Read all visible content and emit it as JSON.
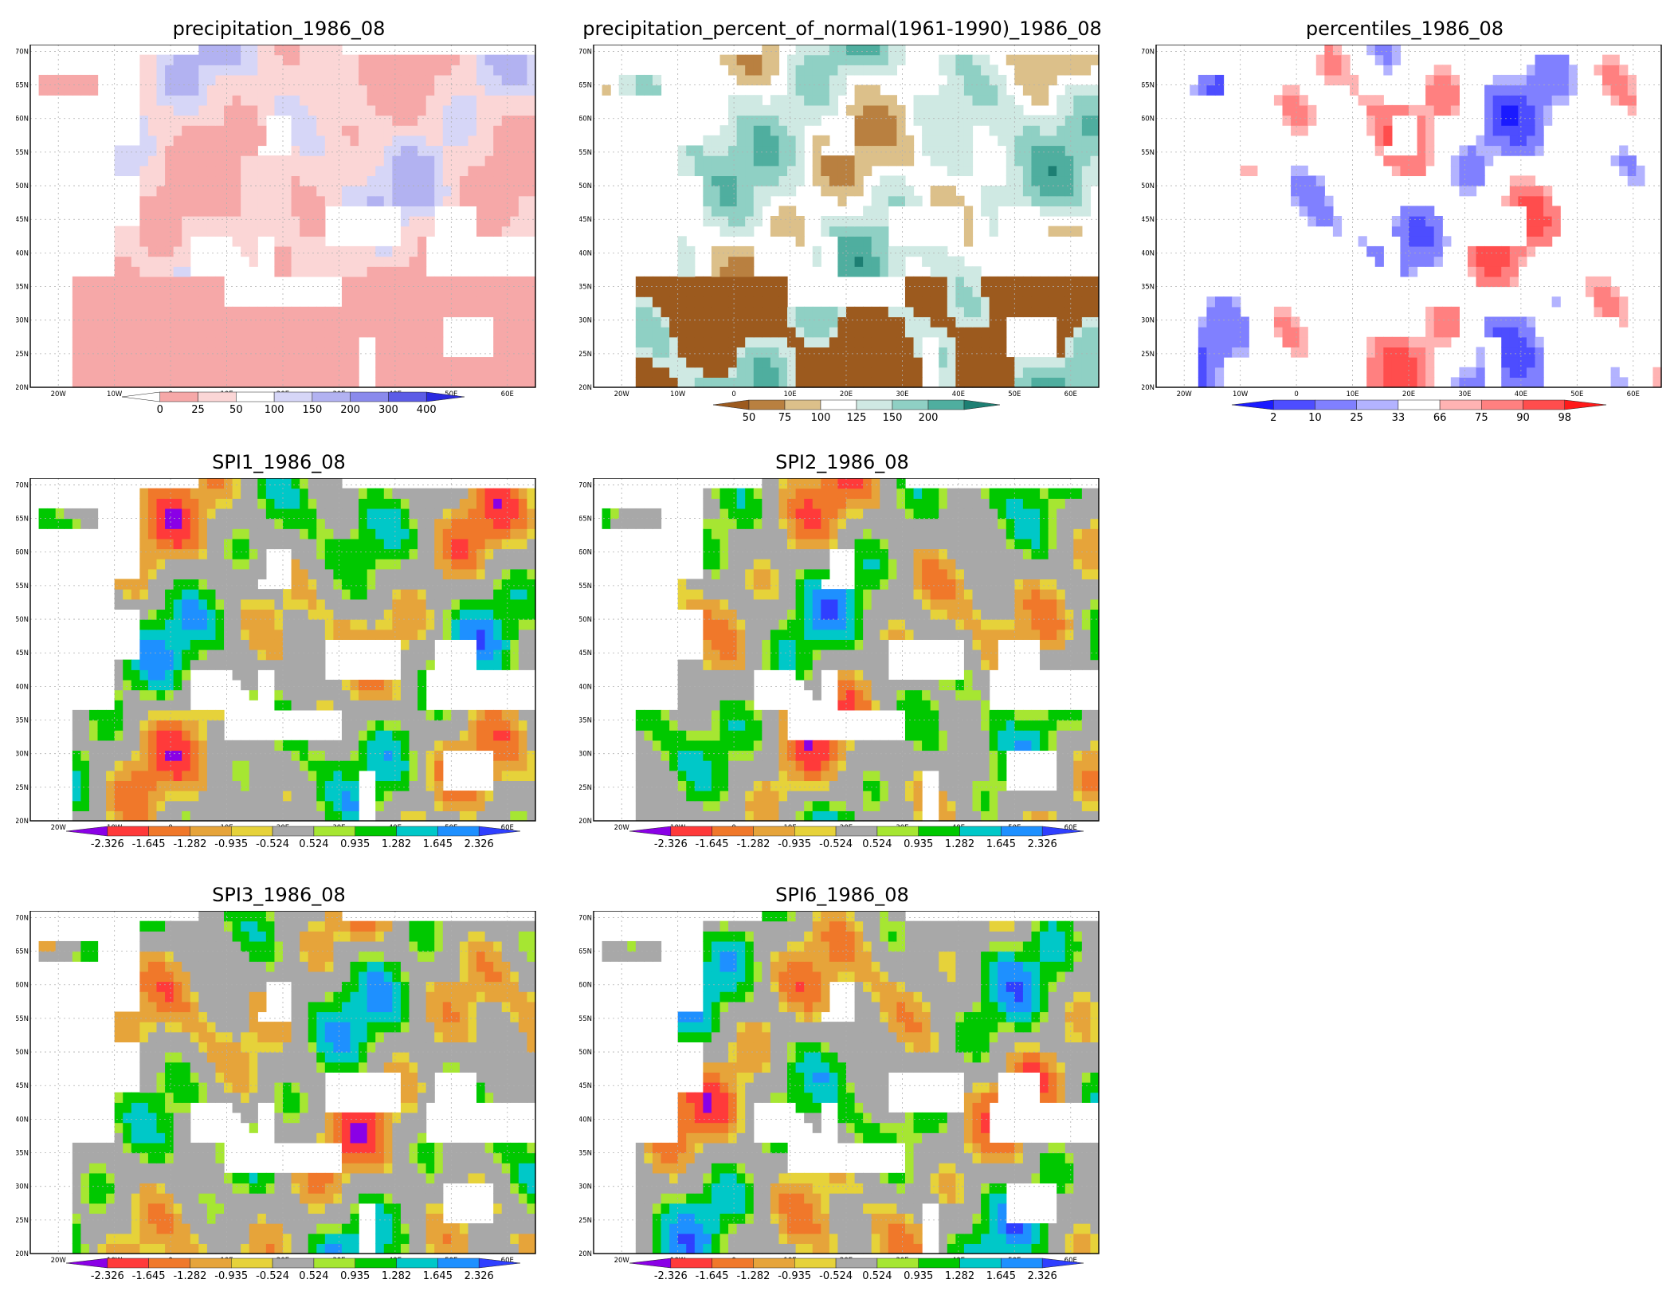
{
  "lat_ticks": [
    "70N",
    "65N",
    "60N",
    "55N",
    "50N",
    "45N",
    "40N",
    "35N",
    "30N",
    "25N",
    "20N"
  ],
  "lon_ticks": [
    "20W",
    "10W",
    "0",
    "10E",
    "20E",
    "30E",
    "40E",
    "50E",
    "60E"
  ],
  "colors": {
    "precip": [
      "#ffffff",
      "#f6a8a8",
      "#fbd6d6",
      "#ffffff",
      "#d6d6f7",
      "#b2b2f1",
      "#8a8aec",
      "#5c5ce6",
      "#2a2ae0"
    ],
    "pct": [
      "#9c5a1e",
      "#b98040",
      "#dcc08a",
      "#ffffff",
      "#cfe9e3",
      "#8fd0c4",
      "#4fae9f",
      "#1d7f73"
    ],
    "perc": [
      "#1a1aff",
      "#4d4dff",
      "#8080ff",
      "#b3b3ff",
      "#ffffff",
      "#ffb3b3",
      "#ff8080",
      "#ff4d4d",
      "#ff1a1a"
    ],
    "spi": [
      "#8a00e6",
      "#ff3a3a",
      "#f0782a",
      "#e6a43a",
      "#e6d23a",
      "#a8a8a8",
      "#a6e632",
      "#00c800",
      "#00c8c8",
      "#1e90ff",
      "#2f3fff"
    ]
  },
  "panels": [
    {
      "name": "precipitation",
      "title": "precipitation_1986_08",
      "palette": "precip",
      "legend_labels": [
        "0",
        "25",
        "50",
        "100",
        "150",
        "200",
        "300",
        "400"
      ]
    },
    {
      "name": "precipitation-percent",
      "title": "precipitation_percent_of_normal(1961-1990)_1986_08",
      "palette": "pct",
      "legend_labels": [
        "50",
        "75",
        "100",
        "125",
        "150",
        "200"
      ]
    },
    {
      "name": "percentiles",
      "title": "percentiles_1986_08",
      "palette": "perc",
      "legend_labels": [
        "2",
        "10",
        "25",
        "33",
        "66",
        "75",
        "90",
        "98"
      ]
    },
    {
      "name": "spi1",
      "title": "SPI1_1986_08",
      "palette": "spi",
      "legend_labels": [
        "-2.326",
        "-1.645",
        "-1.282",
        "-0.935",
        "-0.524",
        "0.524",
        "0.935",
        "1.282",
        "1.645",
        "2.326"
      ]
    },
    {
      "name": "spi2",
      "title": "SPI2_1986_08",
      "palette": "spi",
      "legend_labels": [
        "-2.326",
        "-1.645",
        "-1.282",
        "-0.935",
        "-0.524",
        "0.524",
        "0.935",
        "1.282",
        "1.645",
        "2.326"
      ]
    },
    {
      "name": "spi3",
      "title": "SPI3_1986_08",
      "palette": "spi",
      "legend_labels": [
        "-2.326",
        "-1.645",
        "-1.282",
        "-0.935",
        "-0.524",
        "0.524",
        "0.935",
        "1.282",
        "1.645",
        "2.326"
      ]
    },
    {
      "name": "spi6",
      "title": "SPI6_1986_08",
      "palette": "spi",
      "legend_labels": [
        "-2.326",
        "-1.645",
        "-1.282",
        "-0.935",
        "-0.524",
        "0.524",
        "0.935",
        "1.282",
        "1.645",
        "2.326"
      ]
    }
  ]
}
